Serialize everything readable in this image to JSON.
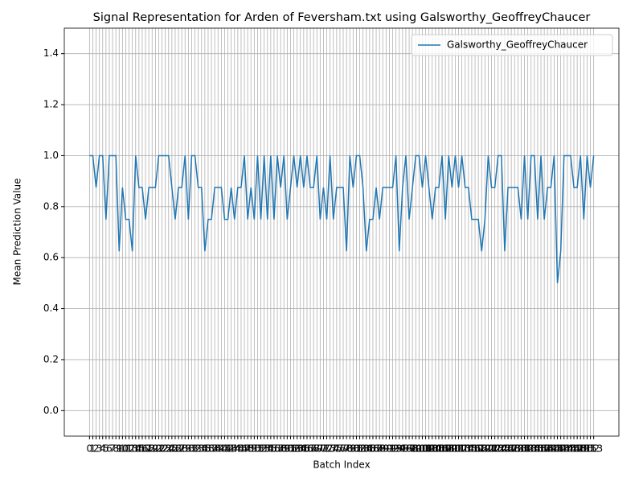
{
  "chart_data": {
    "type": "line",
    "title": "Signal Representation for Arden of Feversham.txt using Galsworthy_GeoffreyChaucer",
    "x_label": "Batch Index",
    "y_label": "Mean Prediction Value",
    "x": [
      0,
      1,
      2,
      3,
      4,
      5,
      6,
      7,
      8,
      9,
      10,
      11,
      12,
      13,
      14,
      15,
      16,
      17,
      18,
      19,
      20,
      21,
      22,
      23,
      24,
      25,
      26,
      27,
      28,
      29,
      30,
      31,
      32,
      33,
      34,
      35,
      36,
      37,
      38,
      39,
      40,
      41,
      42,
      43,
      44,
      45,
      46,
      47,
      48,
      49,
      50,
      51,
      52,
      53,
      54,
      55,
      56,
      57,
      58,
      59,
      60,
      61,
      62,
      63,
      64,
      65,
      66,
      67,
      68,
      69,
      70,
      71,
      72,
      73,
      74,
      75,
      76,
      77,
      78,
      79,
      80,
      81,
      82,
      83,
      84,
      85,
      86,
      87,
      88,
      89,
      90,
      91,
      92,
      93,
      94,
      95,
      96,
      97,
      98,
      99,
      100,
      101,
      102,
      103,
      104,
      105,
      106,
      107,
      108,
      109,
      110,
      111,
      112,
      113,
      114,
      115,
      116,
      117,
      118,
      119,
      120,
      121,
      122,
      123,
      124,
      125,
      126,
      127,
      128,
      129,
      130,
      131,
      132,
      133,
      134,
      135,
      136,
      137,
      138,
      139,
      140,
      141,
      142,
      143,
      144,
      145,
      146,
      147,
      148,
      149,
      150,
      151,
      152,
      153
    ],
    "series": [
      {
        "name": "Galsworthy_GeoffreyChaucer",
        "color": "#1f77b4",
        "values": [
          1,
          1,
          0.875,
          1,
          1,
          0.75,
          1,
          1,
          1,
          0.625,
          0.875,
          0.75,
          0.75,
          0.625,
          1,
          0.875,
          0.875,
          0.75,
          0.875,
          0.875,
          0.875,
          1,
          1,
          1,
          1,
          0.875,
          0.75,
          0.875,
          0.875,
          1,
          0.75,
          1,
          1,
          0.875,
          0.875,
          0.625,
          0.75,
          0.75,
          0.875,
          0.875,
          0.875,
          0.75,
          0.75,
          0.875,
          0.75,
          0.875,
          0.875,
          1,
          0.75,
          0.875,
          0.75,
          1,
          0.75,
          1,
          0.75,
          1,
          0.75,
          1,
          0.875,
          1,
          0.75,
          0.875,
          1,
          0.875,
          1,
          0.875,
          1,
          0.875,
          0.875,
          1,
          0.75,
          0.875,
          0.75,
          1,
          0.75,
          0.875,
          0.875,
          0.875,
          0.625,
          1,
          0.875,
          1,
          1,
          0.875,
          0.625,
          0.75,
          0.75,
          0.875,
          0.75,
          0.875,
          0.875,
          0.875,
          0.875,
          1,
          0.625,
          0.875,
          1,
          0.75,
          0.875,
          1,
          1,
          0.875,
          1,
          0.875,
          0.75,
          0.875,
          0.875,
          1,
          0.75,
          1,
          0.875,
          1,
          0.875,
          1,
          0.875,
          0.875,
          0.75,
          0.75,
          0.75,
          0.625,
          0.75,
          1,
          0.875,
          0.875,
          1,
          1,
          0.625,
          0.875,
          0.875,
          0.875,
          0.875,
          0.75,
          1,
          0.75,
          1,
          1,
          0.75,
          1,
          0.75,
          0.875,
          0.875,
          1,
          0.5,
          0.625,
          1,
          1,
          1,
          0.875,
          0.875,
          1,
          0.75,
          1,
          0.875,
          1
        ]
      }
    ],
    "xlim": [
      -7.65,
      160.65
    ],
    "xticks": [
      0,
      1,
      2,
      3,
      4,
      5,
      6,
      7,
      8,
      9,
      10,
      11,
      12,
      13,
      14,
      15,
      16,
      17,
      18,
      19,
      20,
      21,
      22,
      23,
      24,
      25,
      26,
      27,
      28,
      29,
      30,
      31,
      32,
      33,
      34,
      35,
      36,
      37,
      38,
      39,
      40,
      41,
      42,
      43,
      44,
      45,
      46,
      47,
      48,
      49,
      50,
      51,
      52,
      53,
      54,
      55,
      56,
      57,
      58,
      59,
      60,
      61,
      62,
      63,
      64,
      65,
      66,
      67,
      68,
      69,
      70,
      71,
      72,
      73,
      74,
      75,
      76,
      77,
      78,
      79,
      80,
      81,
      82,
      83,
      84,
      85,
      86,
      87,
      88,
      89,
      90,
      91,
      92,
      93,
      94,
      95,
      96,
      97,
      98,
      99,
      100,
      101,
      102,
      103,
      104,
      105,
      106,
      107,
      108,
      109,
      110,
      111,
      112,
      113,
      114,
      115,
      116,
      117,
      118,
      119,
      120,
      121,
      122,
      123,
      124,
      125,
      126,
      127,
      128,
      129,
      130,
      131,
      132,
      133,
      134,
      135,
      136,
      137,
      138,
      139,
      140,
      141,
      142,
      143,
      144,
      145,
      146,
      147,
      148,
      149,
      150,
      151,
      152,
      153
    ],
    "ylim": [
      -0.1,
      1.5
    ],
    "yticks": [
      {
        "value": 0,
        "label": "0.0"
      },
      0.2,
      0.4,
      0.6,
      0.8,
      {
        "value": 1,
        "label": "1.0"
      },
      1.2,
      1.4
    ],
    "grid": true,
    "legend": "upper right"
  }
}
